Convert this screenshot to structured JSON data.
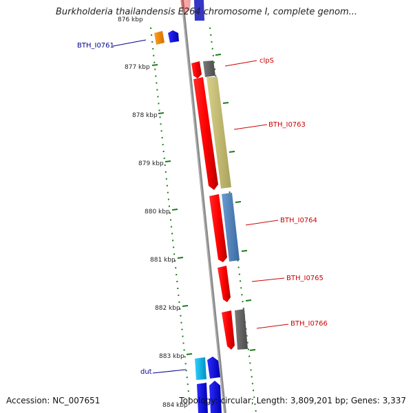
{
  "header": {
    "title": "Burkholderia thailandensis E264 chromosome I, complete genom..."
  },
  "footer": {
    "accession": "Accession: NC_007651",
    "stats": "Topology: circular; Length: 3,809,201 bp; Genes: 3,337"
  },
  "colors": {
    "backbone": "#8a8a8a",
    "tick": "#1a7a1a",
    "label_forward": "#00008b",
    "label_reverse": "#cc0000"
  },
  "scale": {
    "ticks": [
      "876 kbp",
      "877 kbp",
      "878 kbp",
      "879 kbp",
      "880 kbp",
      "881 kbp",
      "882 kbp",
      "883 kbp",
      "884 kbp"
    ]
  },
  "features": {
    "labels": [
      "BTH_I0761",
      "clpS",
      "BTH_I0763",
      "BTH_I0764",
      "BTH_I0765",
      "BTH_I0766",
      "dut"
    ]
  }
}
